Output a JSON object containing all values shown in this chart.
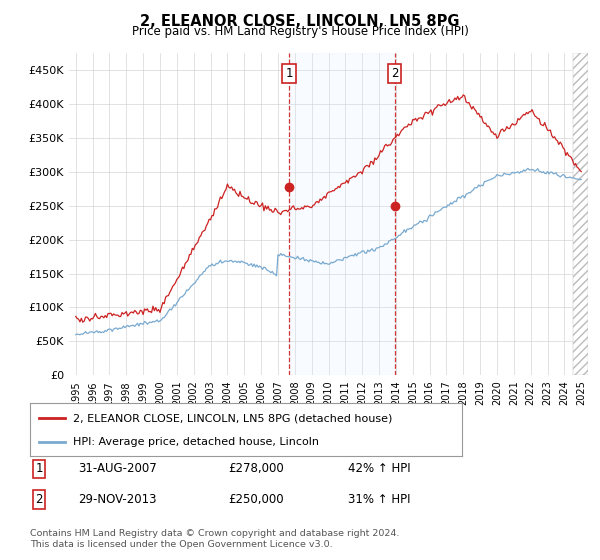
{
  "title": "2, ELEANOR CLOSE, LINCOLN, LN5 8PG",
  "subtitle": "Price paid vs. HM Land Registry's House Price Index (HPI)",
  "ylim": [
    0,
    475000
  ],
  "yticks": [
    0,
    50000,
    100000,
    150000,
    200000,
    250000,
    300000,
    350000,
    400000,
    450000
  ],
  "ytick_labels": [
    "£0",
    "£50K",
    "£100K",
    "£150K",
    "£200K",
    "£250K",
    "£300K",
    "£350K",
    "£400K",
    "£450K"
  ],
  "sale1_year": 2007.667,
  "sale1_price": 278000,
  "sale1_label": "1",
  "sale1_date_str": "31-AUG-2007",
  "sale1_pct": "42% ↑ HPI",
  "sale2_year": 2013.917,
  "sale2_price": 250000,
  "sale2_label": "2",
  "sale2_date_str": "29-NOV-2013",
  "sale2_pct": "31% ↑ HPI",
  "hpi_color": "#7aaad0",
  "price_color": "#cc2222",
  "legend_label1": "2, ELEANOR CLOSE, LINCOLN, LN5 8PG (detached house)",
  "legend_label2": "HPI: Average price, detached house, Lincoln",
  "footnote1": "Contains HM Land Registry data © Crown copyright and database right 2024.",
  "footnote2": "This data is licensed under the Open Government Licence v3.0.",
  "background_color": "#ffffff",
  "shade_color": "#ddeeff",
  "hatch_end_start": 2024.5,
  "xmin": 1994.6,
  "xmax": 2025.4
}
